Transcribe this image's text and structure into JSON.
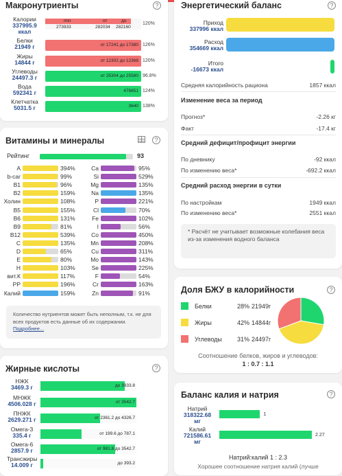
{
  "colors": {
    "green": "#1fd66e",
    "yellow": "#f6dc3e",
    "red": "#f27171",
    "blue": "#4aa8e8",
    "purple": "#9e55b7",
    "grey": "#dcdcdc"
  },
  "macro": {
    "title": "Макронутриенты",
    "items": [
      {
        "name": "Калории",
        "value": "337995.9 ккал",
        "pct": "120%",
        "color": "red",
        "labels": {
          "min": "min",
          "ot": "от",
          "do": "до",
          "a": "273933",
          "b": "282034",
          "c": "282160"
        }
      },
      {
        "name": "Белки",
        "value": "21949 г",
        "pct": "126%",
        "color": "red",
        "text": "от 17241 до 17380"
      },
      {
        "name": "Жиры",
        "value": "14844 г",
        "pct": "120%",
        "color": "red",
        "text": "от 12302 до 12368"
      },
      {
        "name": "Углеводы",
        "value": "24497.3 г",
        "pct": "96.8%",
        "color": "green",
        "text": "от 25304 до 25580"
      },
      {
        "name": "Вода",
        "value": "592341 г",
        "pct": "124%",
        "color": "green",
        "text": "478851"
      },
      {
        "name": "Клетчатка",
        "value": "5031.5 г",
        "pct": "138%",
        "color": "green",
        "text": "3640"
      }
    ]
  },
  "energy": {
    "title": "Энергетический баланс",
    "income_label": "Приход",
    "income_value": "337996 ккал",
    "outcome_label": "Расход",
    "outcome_value": "354669 ккал",
    "total_label": "Итого",
    "total_value": "-16673 ккал",
    "avg_label": "Средняя калорийность рациона",
    "avg_value": "1857 ккал",
    "change_title": "Изменение веса за период",
    "forecast_label": "Прогноз*",
    "forecast_value": "-2.26 кг",
    "fact_label": "Факт",
    "fact_value": "-17.4 кг",
    "deficit_title": "Средний дефицит/профицит энергии",
    "diary_label": "По дневнику",
    "diary_value": "-92 ккал",
    "bychange_label": "По изменению веса*",
    "bychange_value": "-692.2 ккал",
    "spend_title": "Средний расход энергии в сутки",
    "settings_label": "По настройкам",
    "settings_value": "1949 ккал",
    "spend_change_label": "По изменению веса*",
    "spend_change_value": "2551 ккал",
    "note": "* Расчёт не учитывает возможные колебания веса из-за изменения водного баланса"
  },
  "vitamins": {
    "title": "Витамины и минералы",
    "rating_label": "Рейтинг",
    "rating_value": "93",
    "rating": 0.93,
    "left": [
      {
        "n": "A",
        "p": "394%",
        "c": "yellow"
      },
      {
        "n": "b-car",
        "p": "99%",
        "c": "yellow"
      },
      {
        "n": "B1",
        "p": "96%",
        "c": "yellow"
      },
      {
        "n": "B2",
        "p": "159%",
        "c": "yellow"
      },
      {
        "n": "Холин",
        "p": "108%",
        "c": "yellow"
      },
      {
        "n": "B5",
        "p": "155%",
        "c": "yellow"
      },
      {
        "n": "B6",
        "p": "131%",
        "c": "yellow"
      },
      {
        "n": "B9",
        "p": "81%",
        "c": "yellow"
      },
      {
        "n": "B12",
        "p": "539%",
        "c": "yellow"
      },
      {
        "n": "C",
        "p": "135%",
        "c": "yellow"
      },
      {
        "n": "D",
        "p": "65%",
        "c": "yellow"
      },
      {
        "n": "E",
        "p": "80%",
        "c": "yellow"
      },
      {
        "n": "H",
        "p": "103%",
        "c": "yellow"
      },
      {
        "n": "вит.К",
        "p": "117%",
        "c": "yellow"
      },
      {
        "n": "PP",
        "p": "196%",
        "c": "yellow"
      },
      {
        "n": "Калий",
        "p": "159%",
        "c": "blue"
      }
    ],
    "right": [
      {
        "n": "Ca",
        "p": "95%",
        "c": "purple"
      },
      {
        "n": "Si",
        "p": "529%",
        "c": "purple"
      },
      {
        "n": "Mg",
        "p": "135%",
        "c": "purple"
      },
      {
        "n": "Na",
        "p": "135%",
        "c": "blue"
      },
      {
        "n": "P",
        "p": "221%",
        "c": "purple"
      },
      {
        "n": "Cl",
        "p": "70%",
        "c": "blue"
      },
      {
        "n": "Fe",
        "p": "102%",
        "c": "purple"
      },
      {
        "n": "I",
        "p": "56%",
        "c": "purple"
      },
      {
        "n": "Co",
        "p": "450%",
        "c": "purple"
      },
      {
        "n": "Mn",
        "p": "208%",
        "c": "purple"
      },
      {
        "n": "Cu",
        "p": "311%",
        "c": "purple"
      },
      {
        "n": "Mo",
        "p": "143%",
        "c": "purple"
      },
      {
        "n": "Se",
        "p": "225%",
        "c": "purple"
      },
      {
        "n": "F",
        "p": "54%",
        "c": "purple"
      },
      {
        "n": "Cr",
        "p": "163%",
        "c": "purple"
      },
      {
        "n": "Zn",
        "p": "91%",
        "c": "purple"
      }
    ],
    "note": "Количество нутриентов может быть неполным, т.к. не для всех продуктов есть данные об их содержании.",
    "more_link": "Подробнее..."
  },
  "bju": {
    "title": "Доля БЖУ в калорийности",
    "items": [
      {
        "name": "Белки",
        "pct": "28%",
        "value": "21949г",
        "color": "green",
        "share": 28
      },
      {
        "name": "Жиры",
        "pct": "42%",
        "value": "14844г",
        "color": "yellow",
        "share": 42
      },
      {
        "name": "Углеводы",
        "pct": "31%",
        "value": "24497г",
        "color": "red",
        "share": 31
      }
    ],
    "ratio_label": "Соотношение белков, жиров и углеводов:",
    "ratio_value": "1 : 0.7 : 1.1"
  },
  "fatty": {
    "title": "Жирные кислоты",
    "items": [
      {
        "name": "НЖК",
        "value": "3469.3 г",
        "text": "до 3933.8",
        "fill": 0.88
      },
      {
        "name": "МНЖК",
        "value": "4506.028 г",
        "text": "от 3542.7",
        "fill": 1.0
      },
      {
        "name": "ПНЖК",
        "value": "2629.271 г",
        "text": "от 2361.2 до 4326.7",
        "fill": 0.62
      },
      {
        "name": "Омега-3",
        "value": "335.4 г",
        "text": "от 199.6 до 787.1",
        "fill": 0.43
      },
      {
        "name": "Омега-6",
        "value": "2857.9 г",
        "text": "от 981.8 до 3542.7",
        "fill": 0.78
      },
      {
        "name": "Трансжиры",
        "value": "14.009 г",
        "text": "до 393.2",
        "fill": 0.03
      }
    ]
  },
  "kna": {
    "title": "Баланс калия и натрия",
    "items": [
      {
        "name": "Натрий",
        "value": "318322.68 мг",
        "num": "1",
        "fill": 0.44
      },
      {
        "name": "Калий",
        "value": "721586.61 мг",
        "num": "2.27",
        "fill": 1.0
      }
    ],
    "ratio": "Натрий:калий 1 : 2.3",
    "footer": "Хорошее соотношение натрия калий (лучше"
  }
}
